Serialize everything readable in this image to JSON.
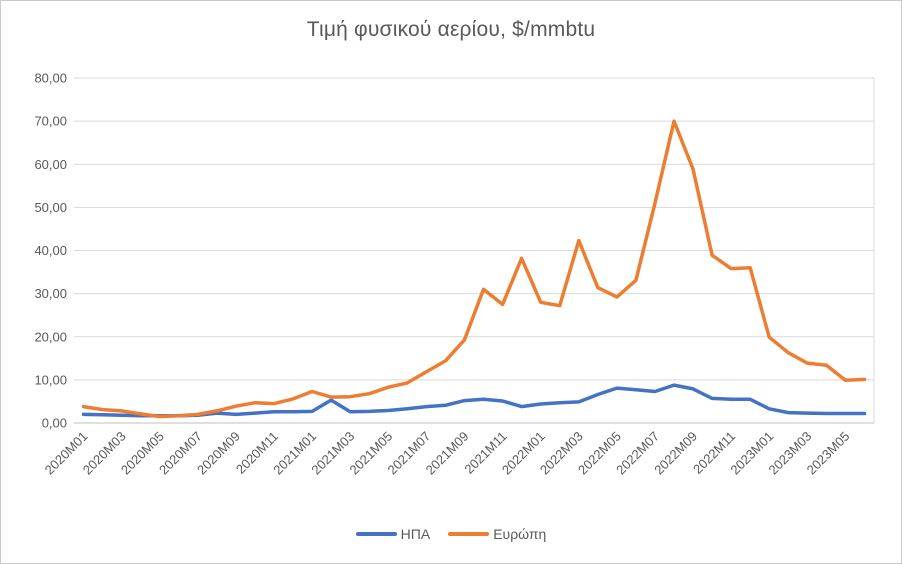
{
  "chart_data": {
    "type": "line",
    "title": "Τιμή φυσικού αερίου, $/mmbtu",
    "categories": [
      "2020M01",
      "2020M02",
      "2020M03",
      "2020M04",
      "2020M05",
      "2020M06",
      "2020M07",
      "2020M08",
      "2020M09",
      "2020M10",
      "2020M11",
      "2020M12",
      "2021M01",
      "2021M02",
      "2021M03",
      "2021M04",
      "2021M05",
      "2021M06",
      "2021M07",
      "2021M08",
      "2021M09",
      "2021M10",
      "2021M11",
      "2021M12",
      "2022M01",
      "2022M02",
      "2022M03",
      "2022M04",
      "2022M05",
      "2022M06",
      "2022M07",
      "2022M08",
      "2022M09",
      "2022M10",
      "2022M11",
      "2022M12",
      "2023M01",
      "2023M02",
      "2023M03",
      "2023M04",
      "2023M05",
      "2023M06"
    ],
    "series": [
      {
        "name": "ΗΠΑ",
        "color": "#4472C4",
        "values": [
          2.0,
          1.9,
          1.8,
          1.7,
          1.7,
          1.7,
          1.8,
          2.3,
          2.0,
          2.3,
          2.6,
          2.6,
          2.7,
          5.3,
          2.6,
          2.7,
          2.9,
          3.3,
          3.8,
          4.1,
          5.2,
          5.5,
          5.1,
          3.8,
          4.4,
          4.7,
          4.9,
          6.6,
          8.1,
          7.7,
          7.3,
          8.8,
          7.9,
          5.7,
          5.5,
          5.5,
          3.3,
          2.4,
          2.3,
          2.2,
          2.2,
          2.2
        ]
      },
      {
        "name": "Ευρώπη",
        "color": "#ED7D31",
        "values": [
          3.8,
          3.1,
          2.8,
          2.1,
          1.5,
          1.7,
          2.0,
          2.8,
          3.9,
          4.7,
          4.5,
          5.6,
          7.3,
          6.0,
          6.1,
          6.8,
          8.3,
          9.3,
          11.9,
          14.4,
          19.3,
          31.0,
          27.5,
          38.2,
          28.0,
          27.2,
          42.3,
          31.4,
          29.2,
          33.1,
          51.0,
          70.0,
          58.9,
          38.9,
          35.8,
          36.0,
          19.9,
          16.3,
          13.9,
          13.4,
          9.9,
          10.1
        ]
      }
    ],
    "ylim": [
      0,
      80
    ],
    "ytick_step": 10,
    "ytick_labels": [
      "0,00",
      "10,00",
      "20,00",
      "30,00",
      "40,00",
      "50,00",
      "60,00",
      "70,00",
      "80,00"
    ],
    "xtick_every": 2,
    "grid": "horizontal",
    "legend_position": "bottom",
    "text_color": "#595959",
    "gridline_color": "#D9D9D9",
    "axis_line_color": "#BFBFBF"
  }
}
